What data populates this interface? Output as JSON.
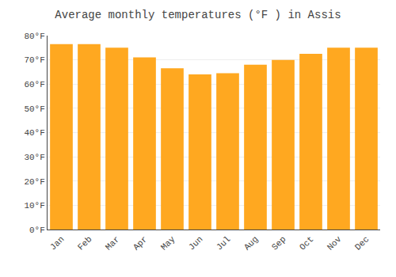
{
  "chart_data": {
    "type": "bar",
    "title": "Average monthly temperatures (°F ) in Assis",
    "categories": [
      "Jan",
      "Feb",
      "Mar",
      "Apr",
      "May",
      "Jun",
      "Jul",
      "Aug",
      "Sep",
      "Oct",
      "Nov",
      "Dec"
    ],
    "values": [
      76.5,
      76.5,
      75.0,
      71.0,
      66.5,
      64.0,
      64.5,
      68.0,
      70.0,
      72.5,
      75.0,
      75.0
    ],
    "color": "#FFA820",
    "ylim": [
      0,
      80
    ],
    "yticks": [
      {
        "value": 0,
        "label": "0°F"
      },
      {
        "value": 10,
        "label": "10°F"
      },
      {
        "value": 20,
        "label": "20°F"
      },
      {
        "value": 30,
        "label": "30°F"
      },
      {
        "value": 40,
        "label": "40°F"
      },
      {
        "value": 50,
        "label": "50°F"
      },
      {
        "value": 60,
        "label": "60°F"
      },
      {
        "value": 70,
        "label": "70°F"
      },
      {
        "value": 80,
        "label": "80°F"
      }
    ],
    "grid": true
  }
}
